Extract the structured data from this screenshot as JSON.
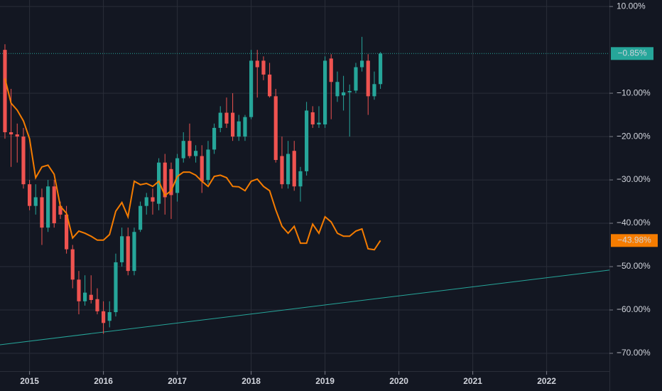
{
  "chart_data": {
    "type": "candlestick",
    "x": [
      2014.667,
      2014.75,
      2014.833,
      2014.917,
      2015,
      2015.083,
      2015.167,
      2015.25,
      2015.333,
      2015.417,
      2015.5,
      2015.583,
      2015.667,
      2015.75,
      2015.833,
      2015.917,
      2016,
      2016.083,
      2016.167,
      2016.25,
      2016.333,
      2016.417,
      2016.5,
      2016.583,
      2016.667,
      2016.75,
      2016.833,
      2016.917,
      2017,
      2017.083,
      2017.167,
      2017.25,
      2017.333,
      2017.417,
      2017.5,
      2017.583,
      2017.667,
      2017.75,
      2017.833,
      2017.917,
      2018,
      2018.083,
      2018.167,
      2018.25,
      2018.333,
      2018.417,
      2018.5,
      2018.583,
      2018.667,
      2018.75,
      2018.833,
      2018.917,
      2019,
      2019.083,
      2019.167,
      2019.25,
      2019.333,
      2019.417,
      2019.5,
      2019.583,
      2019.667,
      2019.75
    ],
    "open": [
      0,
      -19,
      -19.5,
      -20,
      -31,
      -36,
      -34,
      -41,
      -31.5,
      -36,
      -38,
      -46,
      -53,
      -58,
      -56.5,
      -57.5,
      -60.3,
      -62.5,
      -60.5,
      -49,
      -43,
      -51,
      -41.5,
      -36,
      -34,
      -35.5,
      -26,
      -27.5,
      -33,
      -25,
      -21,
      -24.5,
      -24.5,
      -30,
      -23,
      -18,
      -14.5,
      -14.5,
      -20,
      -20,
      -15.5,
      -2.5,
      -2.5,
      -5.7,
      -10.7,
      -24.5,
      -31,
      -23.3,
      -31.5,
      -28,
      -14.4,
      -17.2,
      -17.2,
      -2,
      -10.7,
      -10.5,
      -9.8,
      -9.4,
      -4,
      -2.5,
      -10.7,
      -7.9
    ],
    "high": [
      1.3,
      -9,
      -17,
      -18,
      -30,
      -31,
      -32,
      -30,
      -30,
      -35,
      -36,
      -45,
      -51,
      -52,
      -52,
      -55,
      -58,
      -58,
      -47,
      -41,
      -41,
      -41,
      -35,
      -33,
      -32,
      -25,
      -24,
      -26,
      -24,
      -19,
      -17,
      -22,
      -22,
      -21,
      -17,
      -13,
      -11,
      -10,
      -15,
      -15,
      0,
      0,
      -1.5,
      -3,
      -9,
      -20,
      -21,
      -21,
      -27,
      -12,
      -13,
      -13,
      -1.5,
      -1,
      -5,
      -6,
      -8,
      -3,
      3,
      -1,
      -5,
      -0.5
    ],
    "low": [
      -20.5,
      -27,
      -26,
      -32,
      -37,
      -38,
      -45,
      -42,
      -41,
      -39,
      -47,
      -55,
      -61,
      -59,
      -58.5,
      -61,
      -65.5,
      -64,
      -61.5,
      -50,
      -52,
      -52,
      -42,
      -38,
      -38,
      -37,
      -38,
      -39,
      -35,
      -26,
      -25,
      -26,
      -33,
      -31,
      -24,
      -19,
      -18,
      -21,
      -21,
      -21,
      -16,
      -11,
      -7,
      -11,
      -26,
      -32,
      -32,
      -32.5,
      -35,
      -29,
      -18,
      -18,
      -18,
      -16,
      -12,
      -14,
      -20,
      -10,
      -5,
      -15,
      -11.5,
      -9
    ],
    "close": [
      -19,
      -19.5,
      -20,
      -31,
      -36,
      -34,
      -41,
      -31.5,
      -40,
      -38,
      -46,
      -53,
      -58,
      -56,
      -57.7,
      -60.3,
      -63,
      -60.5,
      -49,
      -43,
      -51,
      -42,
      -36,
      -34,
      -35,
      -26,
      -34,
      -33.5,
      -25,
      -21,
      -24.5,
      -23.3,
      -30.3,
      -23,
      -18,
      -14.5,
      -17,
      -20,
      -16.5,
      -15.5,
      -2.5,
      -4,
      -5.7,
      -10.7,
      -25.4,
      -31,
      -24,
      -31.5,
      -28,
      -14,
      -17.2,
      -16.8,
      -2.5,
      -7.4,
      -7.4,
      -9.8,
      -9.5,
      -4,
      -2.5,
      -10.7,
      -7.9,
      -0.85
    ],
    "up_color": "#26a69a",
    "down_color": "#ef5350",
    "line": {
      "color": "#f57c00",
      "label": "−43.98%",
      "values": [
        -6.6,
        -12.3,
        -13.9,
        -16.4,
        -20.5,
        -29.5,
        -27,
        -26.6,
        -28.7,
        -36.1,
        -37.7,
        -43.4,
        -41.8,
        -42.3,
        -43,
        -43.9,
        -43.9,
        -42.6,
        -37.2,
        -35.2,
        -38.5,
        -30.3,
        -31.1,
        -30.8,
        -31.5,
        -30.3,
        -33.6,
        -32.5,
        -29.2,
        -28.2,
        -28.2,
        -28.9,
        -30.3,
        -31.5,
        -29.2,
        -28.9,
        -29.5,
        -31.5,
        -31.6,
        -32.5,
        -30.3,
        -29.8,
        -31.5,
        -32.5,
        -36.9,
        -40.7,
        -42.3,
        -40.7,
        -44.6,
        -44.6,
        -40.2,
        -42.3,
        -38.5,
        -39.7,
        -42.3,
        -43,
        -43,
        -41.8,
        -41.3,
        -45.9,
        -46.1,
        -43.98
      ]
    },
    "price_line": {
      "value": -0.85,
      "label": "−0.85%",
      "color": "#26a69a"
    },
    "trendline": {
      "x": [
        2014.6,
        2022.85
      ],
      "values": [
        -68.03,
        -50.8
      ],
      "color": "#26a69a"
    },
    "xlim": [
      2014.6,
      2022.85
    ],
    "xticks": [
      2015,
      2016,
      2017,
      2018,
      2019,
      2020,
      2021,
      2022
    ],
    "ylim": [
      -74.1,
      11.5
    ],
    "yticks": [
      {
        "value": 10,
        "label": "10.00%"
      },
      {
        "value": -10,
        "label": "−10.00%"
      },
      {
        "value": -20,
        "label": "−20.00%"
      },
      {
        "value": -30,
        "label": "−30.00%"
      },
      {
        "value": -40,
        "label": "−40.00%"
      },
      {
        "value": -50,
        "label": "−50.00%"
      },
      {
        "value": -60,
        "label": "−60.00%"
      },
      {
        "value": -70,
        "label": "−70.00%"
      }
    ],
    "grid": true
  }
}
